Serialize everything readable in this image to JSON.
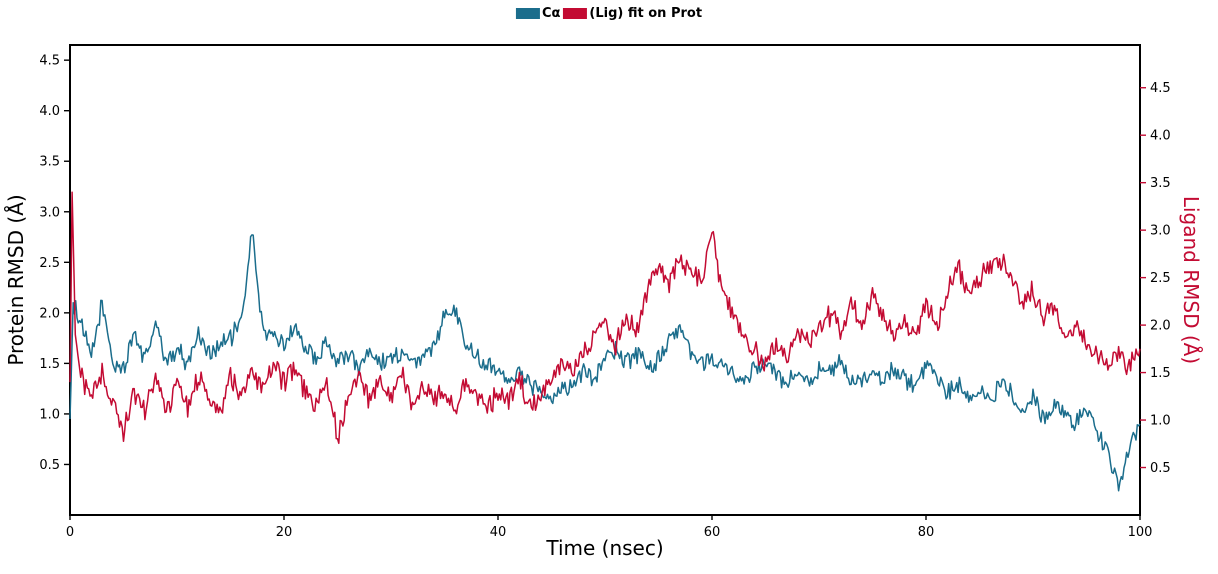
{
  "chart_data": {
    "type": "line",
    "title": "",
    "xlabel": "Time (nsec)",
    "ylabel_left": "Protein RMSD (Å)",
    "ylabel_right": "Ligand RMSD (Å)",
    "xlim": [
      0,
      100
    ],
    "ylim_left": [
      0,
      4.65
    ],
    "ylim_right": [
      0,
      4.95
    ],
    "x_ticks": [
      0,
      20,
      40,
      60,
      80,
      100
    ],
    "y_ticks_left": [
      0.5,
      1.0,
      1.5,
      2.0,
      2.5,
      3.0,
      3.5,
      4.0,
      4.5
    ],
    "y_ticks_right": [
      0.5,
      1.0,
      1.5,
      2.0,
      2.5,
      3.0,
      3.5,
      4.0,
      4.5
    ],
    "grid": false,
    "legend_position": "top-center",
    "series": [
      {
        "name": "Cα (Protein RMSD)",
        "legend_label": "Cα",
        "axis": "left",
        "color": "#1b6d8c",
        "noise_band": 0.11,
        "x": [
          0,
          0.3,
          1,
          2,
          3,
          4,
          5,
          6,
          7,
          8,
          9,
          10,
          11,
          12,
          13,
          14,
          15,
          16,
          17,
          18,
          19,
          20,
          21,
          22,
          23,
          24,
          25,
          26,
          27,
          28,
          29,
          30,
          31,
          32,
          33,
          34,
          35,
          36,
          37,
          38,
          39,
          40,
          41,
          42,
          43,
          44,
          45,
          46,
          47,
          48,
          49,
          50,
          51,
          52,
          53,
          54,
          55,
          56,
          57,
          58,
          59,
          60,
          61,
          62,
          63,
          64,
          65,
          66,
          67,
          68,
          69,
          70,
          71,
          72,
          73,
          74,
          75,
          76,
          77,
          78,
          79,
          80,
          81,
          82,
          83,
          84,
          85,
          86,
          87,
          88,
          89,
          90,
          91,
          92,
          93,
          94,
          95,
          96,
          97,
          98,
          99,
          100
        ],
        "y": [
          0.95,
          2.1,
          1.9,
          1.55,
          2.1,
          1.5,
          1.45,
          1.8,
          1.55,
          1.9,
          1.5,
          1.65,
          1.5,
          1.8,
          1.6,
          1.7,
          1.75,
          1.9,
          2.8,
          1.85,
          1.75,
          1.7,
          1.85,
          1.65,
          1.55,
          1.7,
          1.5,
          1.6,
          1.45,
          1.65,
          1.5,
          1.55,
          1.6,
          1.5,
          1.55,
          1.65,
          2.0,
          2.05,
          1.7,
          1.55,
          1.5,
          1.45,
          1.35,
          1.4,
          1.3,
          1.25,
          1.15,
          1.25,
          1.3,
          1.45,
          1.35,
          1.55,
          1.65,
          1.5,
          1.6,
          1.45,
          1.55,
          1.7,
          1.85,
          1.6,
          1.5,
          1.55,
          1.45,
          1.4,
          1.35,
          1.45,
          1.5,
          1.4,
          1.3,
          1.45,
          1.35,
          1.45,
          1.4,
          1.5,
          1.35,
          1.3,
          1.4,
          1.3,
          1.45,
          1.35,
          1.25,
          1.45,
          1.35,
          1.2,
          1.3,
          1.15,
          1.25,
          1.1,
          1.3,
          1.2,
          1.05,
          1.15,
          0.95,
          1.1,
          1.0,
          0.9,
          1.05,
          0.85,
          0.6,
          0.25,
          0.7,
          0.9
        ]
      },
      {
        "name": "(Lig) fit on Prot (Ligand RMSD)",
        "legend_label": "(Lig) fit on Prot",
        "axis": "right",
        "color": "#c30b33",
        "noise_band": 0.14,
        "x": [
          0,
          0.2,
          0.5,
          1,
          2,
          3,
          4,
          5,
          6,
          7,
          8,
          9,
          10,
          11,
          12,
          13,
          14,
          15,
          16,
          17,
          18,
          19,
          20,
          21,
          22,
          23,
          24,
          25,
          26,
          27,
          28,
          29,
          30,
          31,
          32,
          33,
          34,
          35,
          36,
          37,
          38,
          39,
          40,
          41,
          42,
          43,
          44,
          45,
          46,
          47,
          48,
          49,
          50,
          51,
          52,
          53,
          54,
          55,
          56,
          57,
          58,
          59,
          60,
          61,
          62,
          63,
          64,
          65,
          66,
          67,
          68,
          69,
          70,
          71,
          72,
          73,
          74,
          75,
          76,
          77,
          78,
          79,
          80,
          81,
          82,
          83,
          84,
          85,
          86,
          87,
          88,
          89,
          90,
          91,
          92,
          93,
          94,
          95,
          96,
          97,
          98,
          99,
          100
        ],
        "y": [
          1.4,
          3.4,
          1.9,
          1.45,
          1.25,
          1.5,
          1.15,
          0.9,
          1.3,
          1.1,
          1.45,
          1.05,
          1.4,
          1.15,
          1.45,
          1.25,
          1.1,
          1.45,
          1.25,
          1.5,
          1.3,
          1.55,
          1.4,
          1.6,
          1.3,
          1.15,
          1.45,
          0.8,
          1.25,
          1.45,
          1.2,
          1.4,
          1.25,
          1.5,
          1.15,
          1.4,
          1.2,
          1.3,
          1.1,
          1.4,
          1.25,
          1.15,
          1.3,
          1.2,
          1.4,
          1.15,
          1.3,
          1.4,
          1.6,
          1.5,
          1.7,
          1.85,
          2.0,
          1.8,
          2.1,
          1.95,
          2.35,
          2.65,
          2.45,
          2.7,
          2.55,
          2.45,
          3.0,
          2.35,
          2.1,
          1.9,
          1.7,
          1.6,
          1.8,
          1.7,
          1.9,
          1.8,
          2.0,
          2.1,
          1.95,
          2.25,
          2.0,
          2.35,
          2.1,
          1.9,
          2.05,
          1.85,
          2.25,
          2.0,
          2.35,
          2.6,
          2.35,
          2.45,
          2.65,
          2.7,
          2.5,
          2.25,
          2.35,
          2.05,
          2.2,
          1.9,
          2.0,
          1.8,
          1.7,
          1.6,
          1.7,
          1.55,
          1.75
        ]
      }
    ]
  }
}
